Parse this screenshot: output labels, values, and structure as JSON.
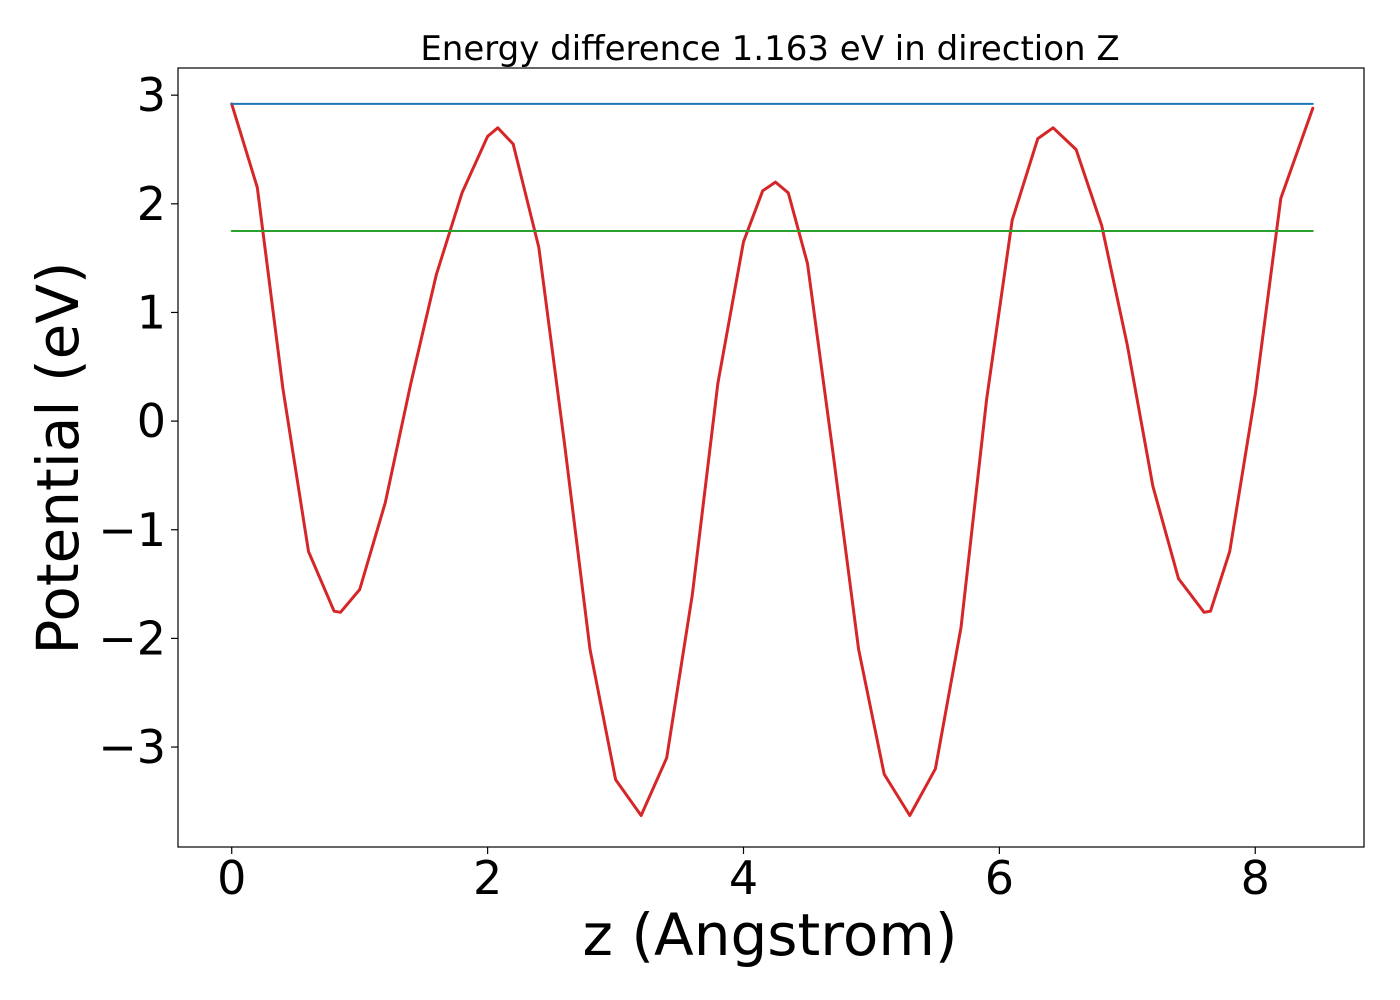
{
  "chart_data": {
    "type": "line",
    "title": "Energy difference 1.163 eV in direction Z",
    "xlabel": "z (Angstrom)",
    "ylabel": "Potential (eV)",
    "xlim": [
      -0.42,
      8.85
    ],
    "ylim": [
      -3.92,
      3.25
    ],
    "xticks": [
      0,
      2,
      4,
      6,
      8
    ],
    "xtick_labels": [
      "0",
      "2",
      "4",
      "6",
      "8"
    ],
    "yticks": [
      3,
      2,
      1,
      0,
      -1,
      -2,
      -3
    ],
    "ytick_labels": [
      "3",
      "2",
      "1",
      "0",
      "−1",
      "−2",
      "−3"
    ],
    "grid": false,
    "legend": "none",
    "series": [
      {
        "color": "#d62728",
        "x": [
          0.0,
          0.2,
          0.4,
          0.6,
          0.8,
          0.85,
          1.0,
          1.2,
          1.4,
          1.6,
          1.8,
          2.0,
          2.08,
          2.2,
          2.4,
          2.6,
          2.8,
          3.0,
          3.2,
          3.4,
          3.6,
          3.8,
          4.0,
          4.15,
          4.25,
          4.35,
          4.5,
          4.7,
          4.9,
          5.1,
          5.3,
          5.5,
          5.7,
          5.9,
          6.1,
          6.3,
          6.42,
          6.6,
          6.8,
          7.0,
          7.2,
          7.4,
          7.6,
          7.65,
          7.8,
          8.0,
          8.2,
          8.45
        ],
        "y": [
          2.92,
          2.15,
          0.3,
          -1.2,
          -1.75,
          -1.76,
          -1.55,
          -0.75,
          0.35,
          1.35,
          2.1,
          2.62,
          2.7,
          2.55,
          1.6,
          -0.2,
          -2.1,
          -3.3,
          -3.63,
          -3.1,
          -1.6,
          0.35,
          1.65,
          2.12,
          2.2,
          2.1,
          1.45,
          -0.3,
          -2.1,
          -3.25,
          -3.63,
          -3.2,
          -1.9,
          0.2,
          1.85,
          2.6,
          2.7,
          2.5,
          1.8,
          0.7,
          -0.6,
          -1.45,
          -1.76,
          -1.75,
          -1.2,
          0.25,
          2.05,
          2.88
        ]
      },
      {
        "color": "#1f77b4",
        "x": [
          0.0,
          8.45
        ],
        "y": [
          2.92,
          2.92
        ]
      },
      {
        "color": "#2ca02c",
        "x": [
          0.0,
          8.45
        ],
        "y": [
          1.75,
          1.75
        ]
      }
    ]
  }
}
